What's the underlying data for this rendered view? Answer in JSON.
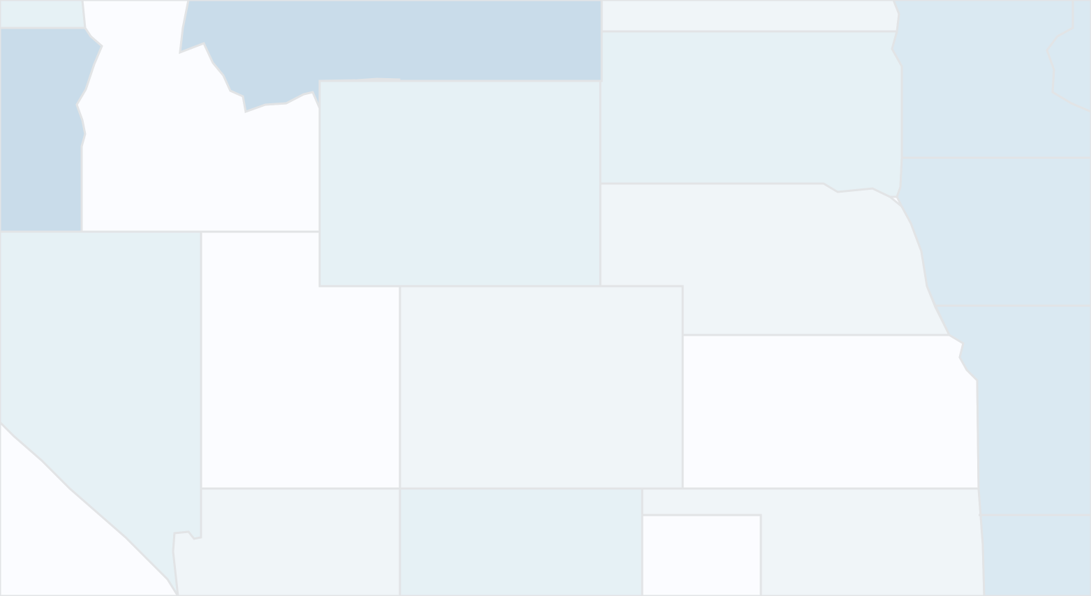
{
  "map": {
    "type": "choropleth",
    "colors": {
      "background": "#fbfcff",
      "border": "#e2e4e6",
      "level_0": "#fbfcff",
      "level_1": "#f0f5f8",
      "level_2": "#e6f1f5",
      "level_3": "#dae9f2",
      "level_4": "#c9dcea"
    },
    "regions": [
      {
        "id": "washington-region",
        "level": 2
      },
      {
        "id": "oregon-region",
        "level": 4
      },
      {
        "id": "idaho-region",
        "level": 0
      },
      {
        "id": "montana-region",
        "level": 4
      },
      {
        "id": "wyoming-region",
        "level": 2
      },
      {
        "id": "north-dakota-region",
        "level": 1
      },
      {
        "id": "south-dakota-region",
        "level": 2
      },
      {
        "id": "nebraska-region",
        "level": 1
      },
      {
        "id": "minnesota-region",
        "level": 3
      },
      {
        "id": "wisconsin-region",
        "level": 3
      },
      {
        "id": "iowa-region",
        "level": 3
      },
      {
        "id": "missouri-region",
        "level": 3
      },
      {
        "id": "nevada-region",
        "level": 2
      },
      {
        "id": "utah-region",
        "level": 0
      },
      {
        "id": "colorado-region",
        "level": 1
      },
      {
        "id": "kansas-region",
        "level": 0
      },
      {
        "id": "california-region",
        "level": 0
      },
      {
        "id": "arizona-region",
        "level": 1
      },
      {
        "id": "new-mexico-region",
        "level": 2
      },
      {
        "id": "oklahoma-region",
        "level": 1
      },
      {
        "id": "oklahoma-panhandle-notch",
        "level": 0
      }
    ]
  }
}
